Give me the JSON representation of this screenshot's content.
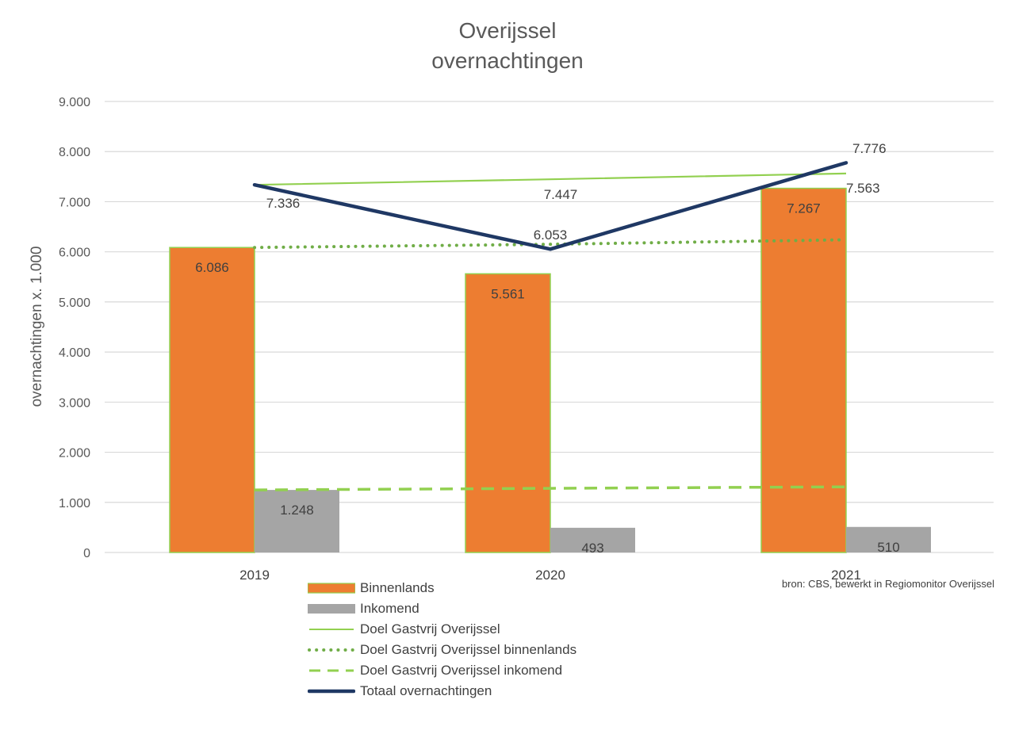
{
  "chart_data": {
    "type": "bar",
    "title_line1": "Overijssel",
    "title_line2": "overnachtingen",
    "ylabel": "overnachtingen x. 1.000",
    "ylim": [
      0,
      9000
    ],
    "yticks": [
      0,
      1000,
      2000,
      3000,
      4000,
      5000,
      6000,
      7000,
      8000,
      9000
    ],
    "ytick_labels": [
      "0",
      "1.000",
      "2.000",
      "3.000",
      "4.000",
      "5.000",
      "6.000",
      "7.000",
      "8.000",
      "9.000"
    ],
    "categories": [
      "2019",
      "2020",
      "2021"
    ],
    "bars": [
      {
        "name": "Binnenlands",
        "color": "#ED7D31",
        "values": [
          6086,
          5561,
          7267
        ],
        "labels": [
          "6.086",
          "5.561",
          "7.267"
        ]
      },
      {
        "name": "Inkomend",
        "color": "#A5A5A5",
        "values": [
          1248,
          493,
          510
        ],
        "labels": [
          "1.248",
          "493",
          "510"
        ]
      }
    ],
    "lines": [
      {
        "name": "Doel Gastvrij Overijssel",
        "color": "#92D050",
        "style": "solid",
        "values": [
          7336,
          7447,
          7563
        ],
        "labels": [
          "7.336",
          "7.447",
          "7.563"
        ]
      },
      {
        "name": "Doel Gastvrij Overijssel binnenlands",
        "color": "#70AD47",
        "style": "dotted",
        "values": [
          6086,
          6150,
          6240
        ],
        "labels": []
      },
      {
        "name": "Doel Gastvrij Overijssel inkomend",
        "color": "#92D050",
        "style": "dashed",
        "values": [
          1248,
          1280,
          1310
        ],
        "labels": []
      },
      {
        "name": "Totaal overnachtingen",
        "color": "#1F3864",
        "style": "thick",
        "values": [
          7336,
          6053,
          7776
        ],
        "labels": [
          "",
          "6.053",
          "7.776"
        ]
      }
    ],
    "grid": true,
    "legend_position": "bottom-left",
    "source": "bron: CBS, bewerkt in Regiomonitor Overijssel"
  }
}
